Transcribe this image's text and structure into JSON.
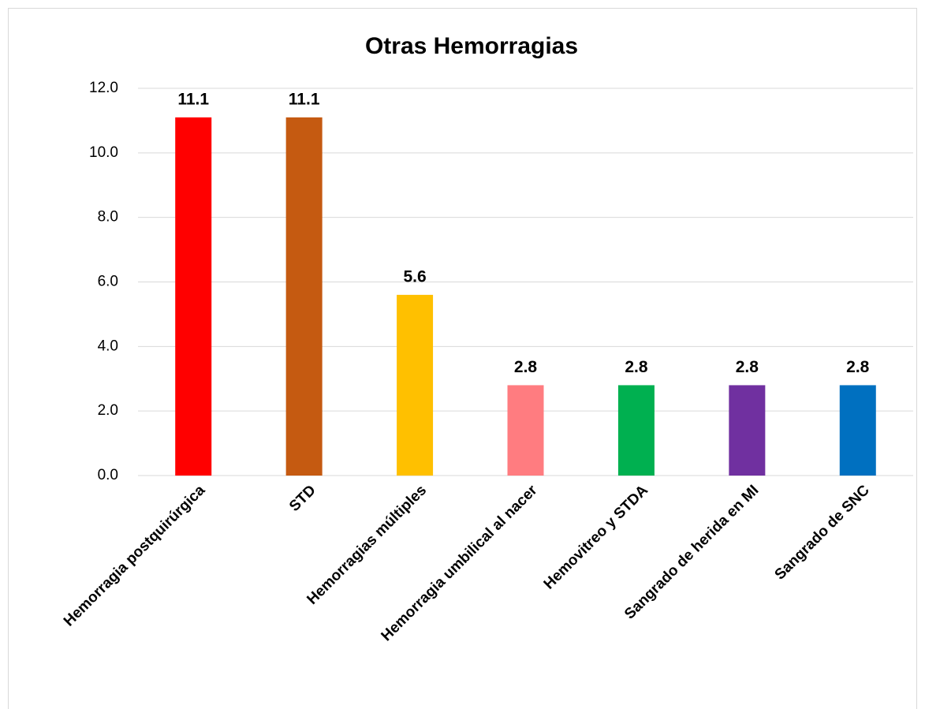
{
  "chart_data": {
    "type": "bar",
    "title": "Otras Hemorragias",
    "categories": [
      "Hemorragia postquirúrgica",
      "STD",
      "Hemorragias múltiples",
      "Hemorragia umbilical al nacer",
      "Hemovitreo y STDA",
      "Sangrado de herida en MI",
      "Sangrado de SNC"
    ],
    "values": [
      11.1,
      11.1,
      5.6,
      2.8,
      2.8,
      2.8,
      2.8
    ],
    "colors": [
      "#ff0000",
      "#c55a11",
      "#ffc000",
      "#ff7c80",
      "#00b050",
      "#7030a0",
      "#0070c0"
    ],
    "ylim": [
      0,
      12
    ],
    "yticks": [
      {
        "value": 0,
        "label": "0.0"
      },
      {
        "value": 2,
        "label": "2.0"
      },
      {
        "value": 4,
        "label": "4.0"
      },
      {
        "value": 6,
        "label": "6.0"
      },
      {
        "value": 8,
        "label": "8.0"
      },
      {
        "value": 10,
        "label": "10.0"
      },
      {
        "value": 12,
        "label": "12.0"
      }
    ],
    "grid": true
  }
}
